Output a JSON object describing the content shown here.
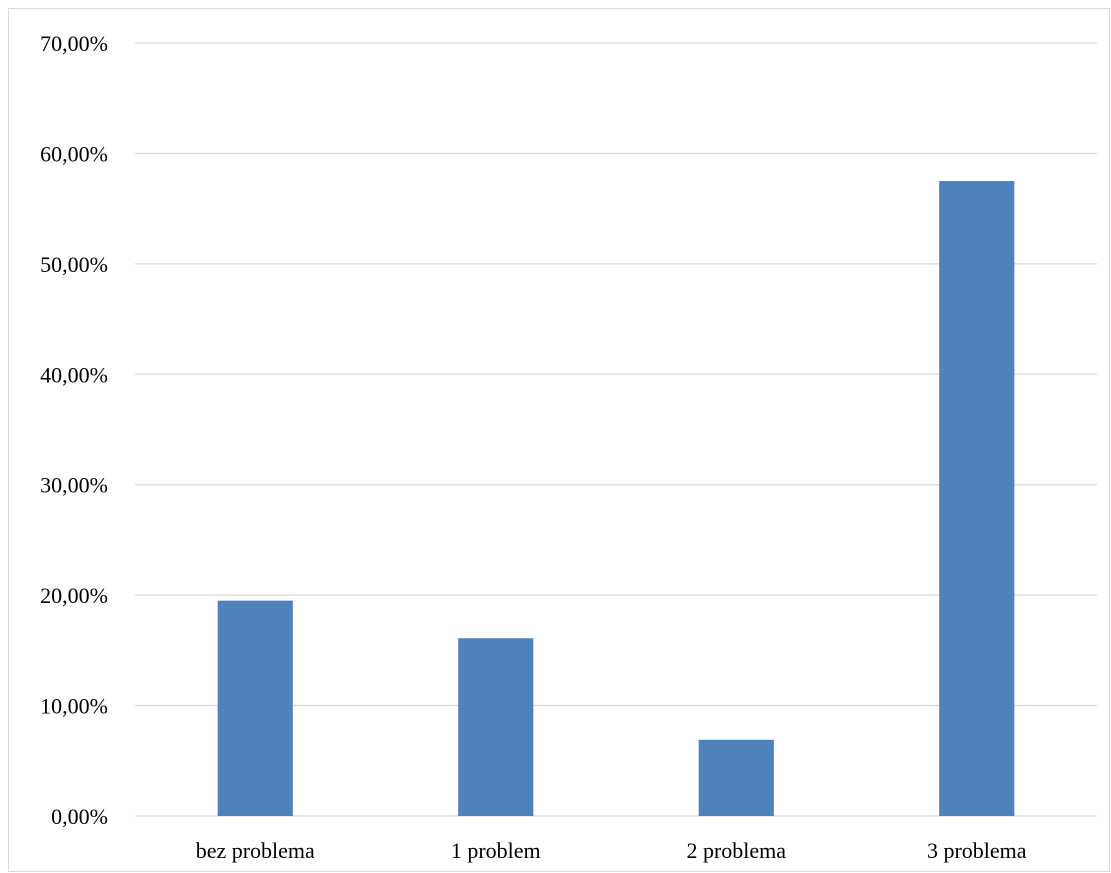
{
  "chart_data": {
    "type": "bar",
    "categories": [
      "bez problema",
      "1 problem",
      "2 problema",
      "3 problema"
    ],
    "values": [
      19.5,
      16.1,
      6.9,
      57.5
    ],
    "ylim": [
      0,
      70
    ],
    "yticks": [
      0,
      10,
      20,
      30,
      40,
      50,
      60,
      70
    ],
    "ytick_labels": [
      "0,00%",
      "10,00%",
      "20,00%",
      "30,00%",
      "40,00%",
      "50,00%",
      "60,00%",
      "70,00%"
    ],
    "title": "",
    "xlabel": "",
    "ylabel": "",
    "grid": true,
    "legend": "none",
    "bar_color": "#4F81BD"
  }
}
